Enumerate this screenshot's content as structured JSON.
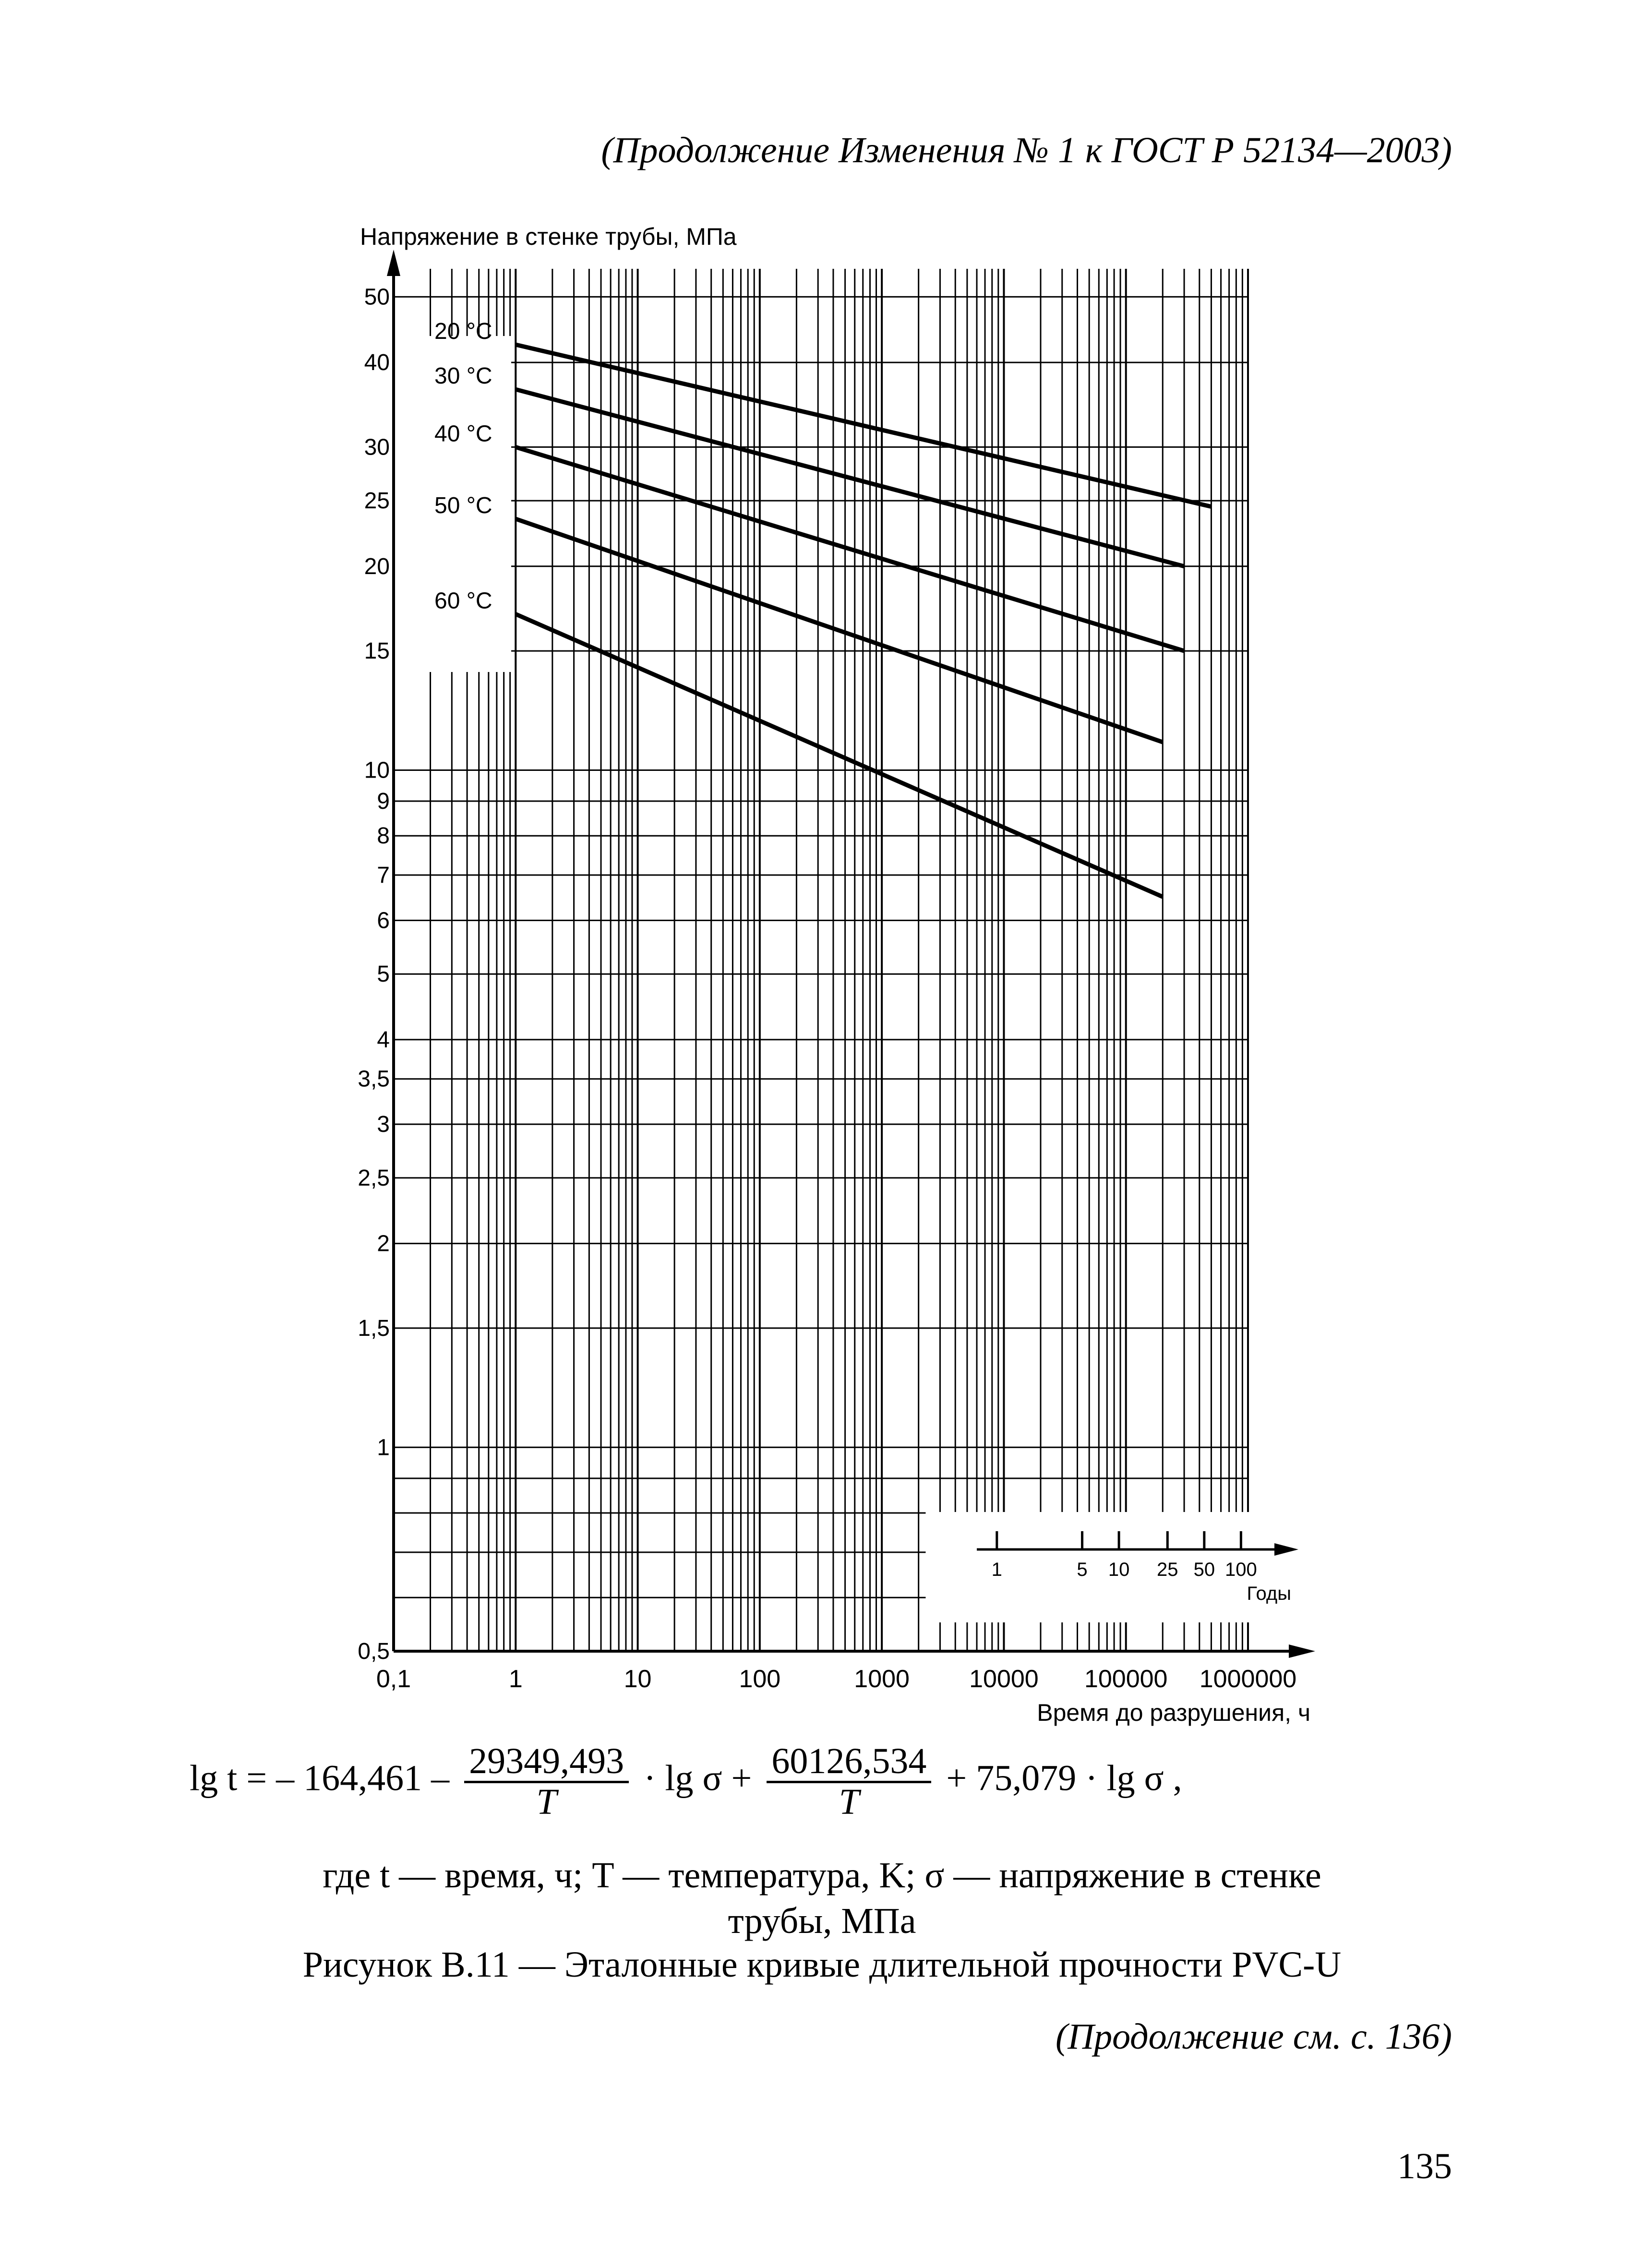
{
  "header": {
    "continuation": "(Продолжение Изменения № 1 к ГОСТ  Р 52134—2003)"
  },
  "chart_data": {
    "type": "line",
    "ylabel": "Напряжение в стенке трубы, МПа",
    "xlabel": "Время до разрушения, ч",
    "x_scale": "log",
    "y_scale": "log",
    "xlim": [
      0.1,
      1000000
    ],
    "ylim": [
      0.5,
      55
    ],
    "grid": true,
    "x_ticks": [
      "0,1",
      "1",
      "10",
      "100",
      "1000",
      "10000",
      "100000",
      "1000000"
    ],
    "y_ticks": [
      {
        "v": 50,
        "label": "50"
      },
      {
        "v": 40,
        "label": "40"
      },
      {
        "v": 30,
        "label": "30"
      },
      {
        "v": 25,
        "label": "25"
      },
      {
        "v": 20,
        "label": "20"
      },
      {
        "v": 15,
        "label": "15"
      },
      {
        "v": 10,
        "label": "10"
      },
      {
        "v": 9,
        "label": "9"
      },
      {
        "v": 8,
        "label": "8"
      },
      {
        "v": 7,
        "label": "7"
      },
      {
        "v": 6,
        "label": "6"
      },
      {
        "v": 5,
        "label": "5"
      },
      {
        "v": 4,
        "label": "4"
      },
      {
        "v": 3.5,
        "label": "3,5"
      },
      {
        "v": 3,
        "label": "3"
      },
      {
        "v": 2.5,
        "label": "2,5"
      },
      {
        "v": 2,
        "label": "2"
      },
      {
        "v": 1.5,
        "label": "1,5"
      },
      {
        "v": 1,
        "label": "1"
      },
      {
        "v": 0.5,
        "label": "0,5"
      }
    ],
    "y_minor_grid": [
      0.6,
      0.7,
      0.8,
      0.9
    ],
    "series": [
      {
        "name": "20 °C",
        "x": [
          1,
          500000
        ],
        "y": [
          42.5,
          24.5
        ]
      },
      {
        "name": "30 °C",
        "x": [
          1,
          300000
        ],
        "y": [
          36.5,
          20
        ]
      },
      {
        "name": "40 °C",
        "x": [
          1,
          300000
        ],
        "y": [
          30,
          15
        ]
      },
      {
        "name": "50 °C",
        "x": [
          1,
          200000
        ],
        "y": [
          23.5,
          11
        ]
      },
      {
        "name": "60 °C",
        "x": [
          1,
          200000
        ],
        "y": [
          17,
          6.5
        ]
      }
    ],
    "years_axis": {
      "label": "Годы",
      "ticks": [
        {
          "years": 1,
          "hours": 8760,
          "label": "1"
        },
        {
          "years": 5,
          "hours": 43800,
          "label": "5"
        },
        {
          "years": 10,
          "hours": 87600,
          "label": "10"
        },
        {
          "years": 25,
          "hours": 219000,
          "label": "25"
        },
        {
          "years": 50,
          "hours": 438000,
          "label": "50"
        },
        {
          "years": 100,
          "hours": 876000,
          "label": "100"
        }
      ]
    }
  },
  "formula": {
    "lhs": "lg t",
    "eq": "=",
    "t1": "– 164,461 –",
    "n1": "29349,493",
    "d1": "T",
    "m1": "· lg σ +",
    "n2": "60126,534",
    "d2": "T",
    "m2": "+ 75,079 · lg σ ,"
  },
  "legend_text": {
    "line1": "где t — время, ч; T — температура, K; σ — напряжение в стенке",
    "line2": "трубы,  МПа"
  },
  "caption": "Рисунок В.11 — Эталонные  кривые  длительной прочности PVC-U",
  "continuation_note": "(Продолжение см. с. 136)",
  "page_number": "135"
}
